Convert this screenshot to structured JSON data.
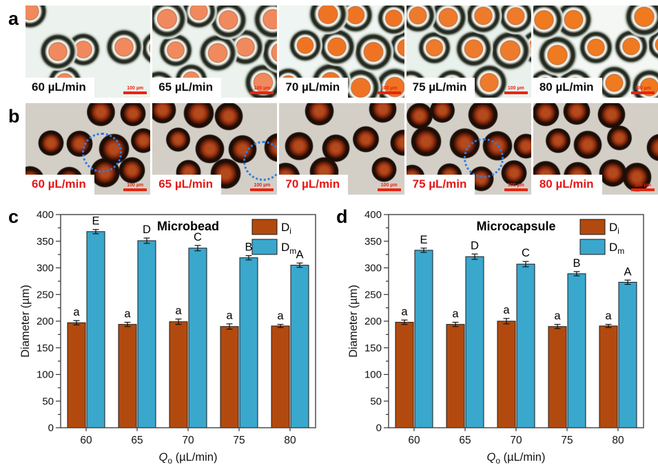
{
  "panel_a": {
    "letter": "a",
    "scale_bar_label": "100 µm",
    "tiles": [
      {
        "flow_label": "60 µL/min"
      },
      {
        "flow_label": "65 µL/min"
      },
      {
        "flow_label": "70 µL/min"
      },
      {
        "flow_label": "75 µL/min"
      },
      {
        "flow_label": "80 µL/min"
      }
    ]
  },
  "panel_b": {
    "letter": "b",
    "scale_bar_label": "100 µm",
    "tiles": [
      {
        "flow_label": "60 µL/min",
        "highlight": true
      },
      {
        "flow_label": "65 µL/min",
        "highlight": true
      },
      {
        "flow_label": "70 µL/min",
        "highlight": false
      },
      {
        "flow_label": "75 µL/min",
        "highlight": true
      },
      {
        "flow_label": "80 µL/min",
        "highlight": false
      }
    ]
  },
  "chart_data": [
    {
      "panel_letter": "c",
      "type": "bar",
      "title": "Microbead",
      "categories": [
        "60",
        "65",
        "70",
        "75",
        "80"
      ],
      "xlabel": {
        "var": "Q",
        "sub": "o",
        "rest": " (µL/min)"
      },
      "ylabel": "Diameter (µm)",
      "ylim": [
        0,
        400
      ],
      "ytick_major": 50,
      "ytick_minor": 25,
      "grid": false,
      "legend_position": "top-right-inside",
      "series": [
        {
          "name": "Di",
          "legend": {
            "base": "D",
            "sub": "i"
          },
          "color": "#b24a0f",
          "values": [
            197,
            194,
            199,
            190,
            191
          ],
          "errors": [
            4,
            4,
            5,
            5,
            3
          ],
          "bar_letters": [
            "a",
            "a",
            "a",
            "a",
            "a"
          ]
        },
        {
          "name": "Dm",
          "legend": {
            "base": "D",
            "sub": "m"
          },
          "color": "#3aa7cd",
          "values": [
            368,
            351,
            337,
            319,
            305
          ],
          "errors": [
            4,
            5,
            5,
            4,
            4
          ],
          "bar_letters": [
            "E",
            "D",
            "C",
            "B",
            "A"
          ]
        }
      ]
    },
    {
      "panel_letter": "d",
      "type": "bar",
      "title": "Microcapsule",
      "categories": [
        "60",
        "65",
        "70",
        "75",
        "80"
      ],
      "xlabel": {
        "var": "Q",
        "sub": "o",
        "rest": " (µL/min)"
      },
      "ylabel": "Diameter (µm)",
      "ylim": [
        0,
        400
      ],
      "ytick_major": 50,
      "ytick_minor": 25,
      "grid": false,
      "legend_position": "top-right-inside",
      "series": [
        {
          "name": "Di",
          "legend": {
            "base": "D",
            "sub": "i"
          },
          "color": "#b24a0f",
          "values": [
            198,
            194,
            200,
            190,
            191
          ],
          "errors": [
            4,
            4,
            5,
            4,
            3
          ],
          "bar_letters": [
            "a",
            "a",
            "a",
            "a",
            "a"
          ]
        },
        {
          "name": "Dm",
          "legend": {
            "base": "D",
            "sub": "m"
          },
          "color": "#3aa7cd",
          "values": [
            333,
            321,
            307,
            289,
            273
          ],
          "errors": [
            4,
            5,
            5,
            4,
            4
          ],
          "bar_letters": [
            "E",
            "D",
            "C",
            "B",
            "A"
          ]
        }
      ]
    }
  ]
}
